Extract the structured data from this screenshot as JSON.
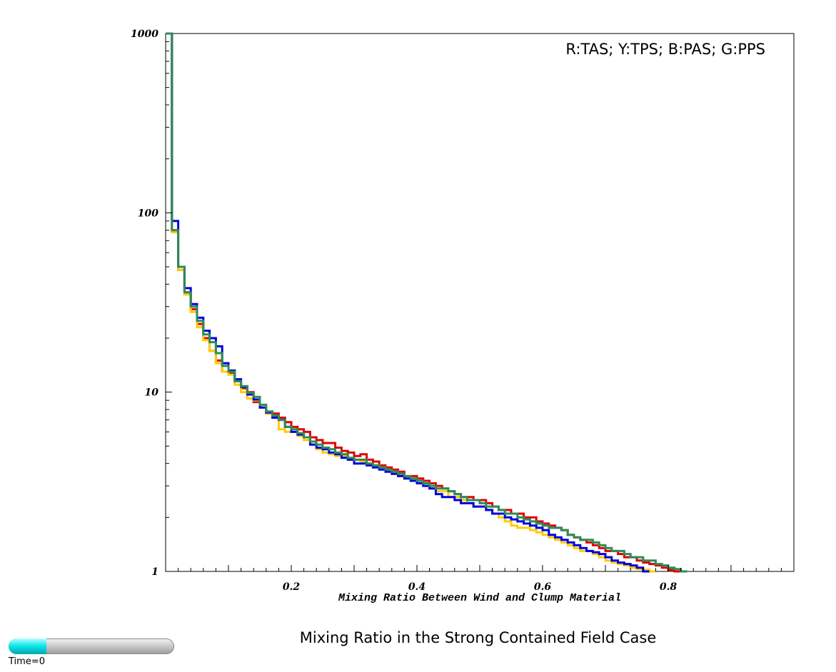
{
  "chart_data": {
    "type": "line",
    "step": "histogram",
    "title": "Mixing Ratio in the Strong Contained Field Case",
    "xlabel": "Mixing Ratio Between Wind and Clump Material",
    "ylabel": "",
    "xlim": [
      0,
      1
    ],
    "ylim": [
      1,
      1000
    ],
    "yscale": "log",
    "xticks": [
      0.2,
      0.4,
      0.6,
      0.8
    ],
    "yticks": [
      1,
      10,
      100,
      1000
    ],
    "legend_text": "R:TAS; Y:TPS; B:PAS; G:PPS",
    "legend_position": "top-right",
    "grid": false,
    "bin_width": 0.01,
    "series": [
      {
        "name": "TAS",
        "color": "#e00000",
        "values": [
          1000,
          80,
          48,
          36,
          29,
          24,
          20,
          17,
          15,
          13,
          12.8,
          11.5,
          10.5,
          10,
          8.8,
          8.2,
          7.6,
          7.6,
          7.2,
          6.8,
          6.4,
          6.2,
          6.0,
          5.6,
          5.4,
          5.2,
          5.2,
          4.9,
          4.7,
          4.6,
          4.4,
          4.5,
          4.2,
          4.1,
          3.9,
          3.8,
          3.7,
          3.6,
          3.4,
          3.4,
          3.3,
          3.2,
          3.1,
          3.0,
          2.9,
          2.8,
          2.7,
          2.6,
          2.6,
          2.5,
          2.5,
          2.4,
          2.3,
          2.2,
          2.2,
          2.1,
          2.1,
          2.0,
          2.0,
          1.9,
          1.85,
          1.8,
          1.75,
          1.7,
          1.6,
          1.55,
          1.5,
          1.45,
          1.4,
          1.35,
          1.3,
          1.3,
          1.25,
          1.2,
          1.2,
          1.15,
          1.12,
          1.1,
          1.08,
          1.05,
          1.02,
          1.0
        ]
      },
      {
        "name": "TPS",
        "color": "#ffcc00",
        "values": [
          1000,
          78,
          48,
          35,
          28,
          23,
          19.5,
          17,
          14.5,
          13,
          12.5,
          11,
          10,
          9.2,
          9,
          8.2,
          7.6,
          7.2,
          6.2,
          6.0,
          6.0,
          5.7,
          5.4,
          5.1,
          4.8,
          4.6,
          4.5,
          4.4,
          4.4,
          4.2,
          4.0,
          4.1,
          4.0,
          3.9,
          3.8,
          3.6,
          3.5,
          3.4,
          3.3,
          3.2,
          3.1,
          3.0,
          2.9,
          2.8,
          2.8,
          2.6,
          2.6,
          2.5,
          2.4,
          2.3,
          2.3,
          2.2,
          2.1,
          2.0,
          1.9,
          1.8,
          1.75,
          1.75,
          1.7,
          1.65,
          1.6,
          1.55,
          1.5,
          1.45,
          1.4,
          1.35,
          1.3,
          1.3,
          1.25,
          1.2,
          1.15,
          1.12,
          1.1,
          1.08,
          1.05,
          1.03,
          1.02,
          1.0
        ]
      },
      {
        "name": "PAS",
        "color": "#0000e0",
        "values": [
          1000,
          90,
          50,
          38,
          31,
          26,
          22,
          20,
          18,
          14.5,
          13.2,
          11.8,
          10.7,
          9.7,
          9.1,
          8.2,
          7.7,
          7.2,
          7.0,
          6.4,
          6.0,
          5.8,
          5.6,
          5.1,
          4.9,
          4.8,
          4.6,
          4.5,
          4.3,
          4.2,
          4.0,
          4.0,
          3.9,
          3.8,
          3.7,
          3.6,
          3.5,
          3.4,
          3.3,
          3.2,
          3.1,
          3.0,
          2.9,
          2.7,
          2.6,
          2.6,
          2.5,
          2.4,
          2.4,
          2.3,
          2.3,
          2.2,
          2.1,
          2.1,
          2.0,
          1.95,
          1.9,
          1.85,
          1.8,
          1.75,
          1.7,
          1.6,
          1.55,
          1.5,
          1.45,
          1.4,
          1.35,
          1.3,
          1.28,
          1.25,
          1.2,
          1.15,
          1.12,
          1.1,
          1.08,
          1.05,
          1.0
        ]
      },
      {
        "name": "PPS",
        "color": "#2e8b57",
        "values": [
          1000,
          80,
          50,
          36,
          30,
          25,
          21,
          19,
          16.5,
          14,
          13,
          11.5,
          10.8,
          9.9,
          9.4,
          8.5,
          7.8,
          7.4,
          7.0,
          6.4,
          6.2,
          5.9,
          5.6,
          5.3,
          5.1,
          4.9,
          4.8,
          4.6,
          4.5,
          4.3,
          4.2,
          4.2,
          4.0,
          3.9,
          3.8,
          3.7,
          3.6,
          3.5,
          3.4,
          3.3,
          3.2,
          3.1,
          3.0,
          2.9,
          2.9,
          2.8,
          2.7,
          2.6,
          2.5,
          2.5,
          2.4,
          2.3,
          2.3,
          2.2,
          2.1,
          2.1,
          2.0,
          1.95,
          1.9,
          1.85,
          1.8,
          1.75,
          1.75,
          1.7,
          1.6,
          1.55,
          1.5,
          1.5,
          1.45,
          1.4,
          1.35,
          1.3,
          1.3,
          1.25,
          1.2,
          1.2,
          1.15,
          1.15,
          1.1,
          1.08,
          1.05,
          1.03,
          1.0
        ]
      }
    ]
  },
  "time_slider": {
    "label": "Time=0",
    "progress": 0.23
  }
}
